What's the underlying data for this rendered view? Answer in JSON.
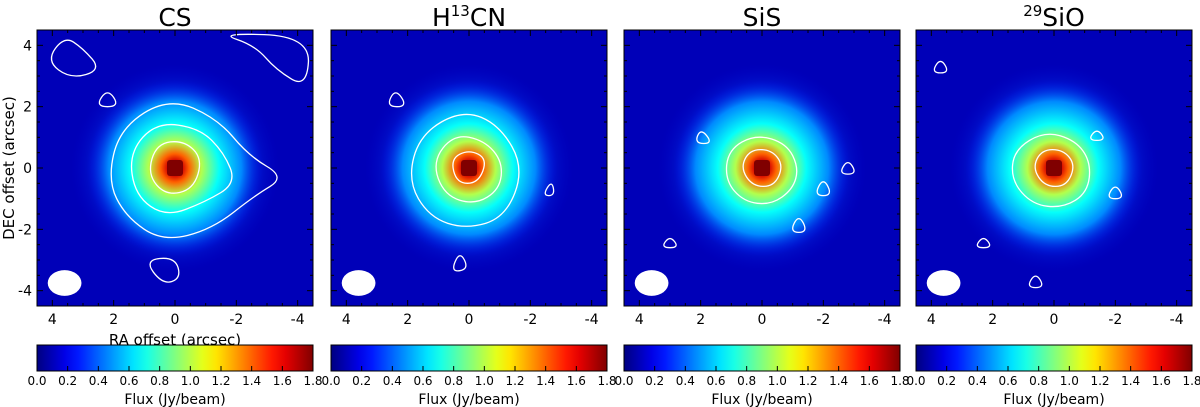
{
  "chart_data": {
    "type": "heatmap",
    "panels": [
      {
        "title": "CS",
        "title_prefix_sup": "",
        "title_main": "CS",
        "title_sup": "",
        "title_suffix": ""
      },
      {
        "title": "H13CN",
        "title_prefix_sup": "",
        "title_main": "H",
        "title_sup": "13",
        "title_suffix": "CN"
      },
      {
        "title": "SiS",
        "title_prefix_sup": "",
        "title_main": "SiS",
        "title_sup": "",
        "title_suffix": ""
      },
      {
        "title": "29SiO",
        "title_prefix_sup": "29",
        "title_main": "SiO",
        "title_sup": "",
        "title_suffix": ""
      }
    ],
    "xlabel": "RA offset (arcsec)",
    "ylabel": "DEC offset (arcsec)",
    "xlim": [
      4.5,
      -4.5
    ],
    "ylim": [
      -4.5,
      4.5
    ],
    "x_ticks": [
      4,
      2,
      0,
      -2,
      -4
    ],
    "x_tick_labels": [
      "4",
      "2",
      "0",
      "-2",
      "-4"
    ],
    "y_ticks": [
      4,
      2,
      0,
      -2,
      -4
    ],
    "y_tick_labels": [
      "4",
      "2",
      "0",
      "-2",
      "-4"
    ],
    "colorbar": {
      "label": "Flux (Jy/beam)",
      "range": [
        0.0,
        1.8
      ],
      "ticks": [
        0.0,
        0.2,
        0.4,
        0.6,
        0.8,
        1.0,
        1.2,
        1.4,
        1.6,
        1.8
      ],
      "tick_labels": [
        "0.0",
        "0.2",
        "0.4",
        "0.6",
        "0.8",
        "1.0",
        "1.2",
        "1.4",
        "1.6",
        "1.8"
      ],
      "colormap": "jet"
    },
    "peak": {
      "x": 0.0,
      "y": 0.0,
      "value": 1.8
    },
    "background_level": 0.1,
    "beam": {
      "x": 3.6,
      "y": -3.75,
      "major_arcsec": 0.55,
      "minor_arcsec": 0.42
    },
    "contour_color": "#ffffff"
  }
}
